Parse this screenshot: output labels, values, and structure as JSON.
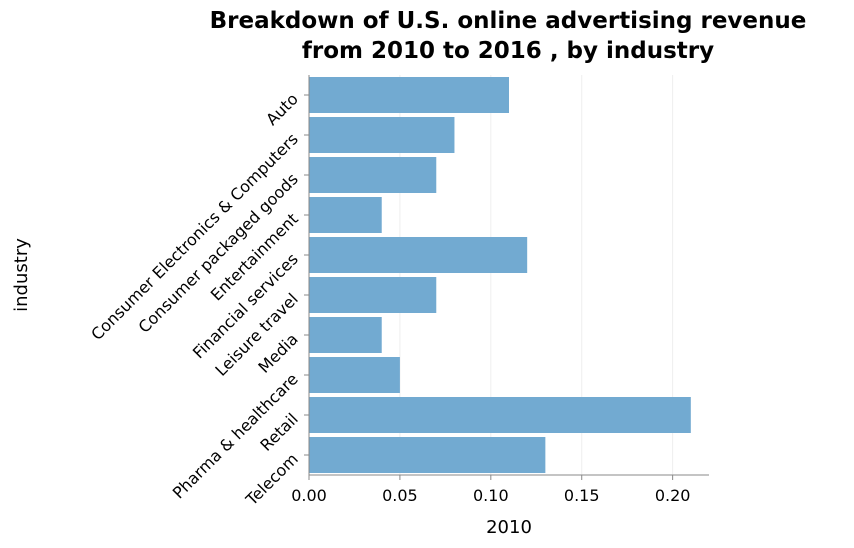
{
  "chart_data": {
    "type": "bar",
    "orientation": "horizontal",
    "title": [
      "Breakdown of U.S. online advertising revenue",
      "from 2010 to 2016 , by industry"
    ],
    "xlabel": "2010",
    "ylabel": "industry",
    "categories": [
      "Auto",
      "Consumer Electronics & Computers",
      "Consumer packaged goods",
      "Entertainment",
      "Financial services",
      "Leisure travel",
      "Media",
      "Pharma & healthcare",
      "Retail",
      "Telecom"
    ],
    "values": [
      0.11,
      0.08,
      0.07,
      0.04,
      0.12,
      0.07,
      0.04,
      0.05,
      0.21,
      0.13
    ],
    "xticks": [
      "0.00",
      "0.05",
      "0.10",
      "0.15",
      "0.20"
    ],
    "xtick_values": [
      0,
      0.05,
      0.1,
      0.15,
      0.2
    ],
    "xlim": [
      0,
      0.22
    ],
    "grid": true,
    "bar_color": "#72aad1"
  }
}
